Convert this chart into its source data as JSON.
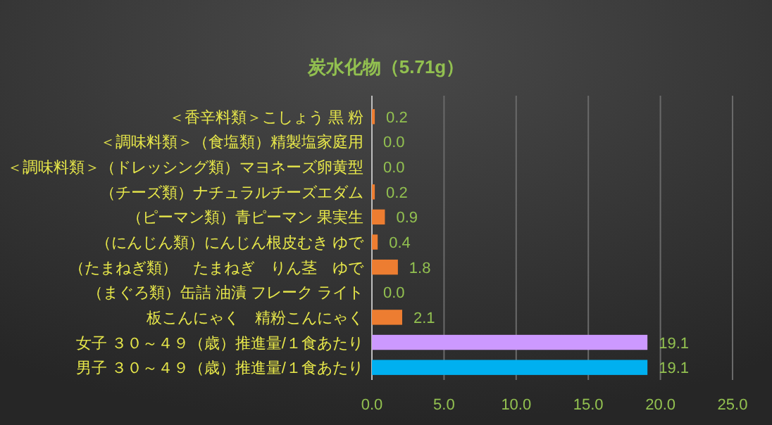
{
  "chart_data": {
    "type": "bar",
    "orientation": "horizontal",
    "title": "炭水化物（5.71g）",
    "categories": [
      "＜香辛料類＞こしょう 黒 粉",
      "＜調味料類＞（食塩類）精製塩家庭用",
      "＜調味料類＞（ドレッシング類）マヨネーズ卵黄型",
      "（チーズ類）ナチュラルチーズエダム",
      "（ピーマン類）青ピーマン 果実生",
      "（にんじん類）にんじん根皮むき ゆで",
      "（たまねぎ類）　たまねぎ　りん茎　ゆで",
      "（まぐろ類）缶詰 油漬 フレーク ライト",
      "板こんにゃく　精粉こんにゃく",
      "女子 ３０～４９（歳）推進量/１食あたり",
      "男子 ３０～４９（歳）推進量/１食あたり"
    ],
    "values": [
      0.2,
      0.0,
      0.0,
      0.2,
      0.9,
      0.4,
      1.8,
      0.0,
      2.1,
      19.1,
      19.1
    ],
    "value_labels": [
      "0.2",
      "0.0",
      "0.0",
      "0.2",
      "0.9",
      "0.4",
      "1.8",
      "0.0",
      "2.1",
      "19.1",
      "19.1"
    ],
    "colors": [
      "#ed7d31",
      "#ed7d31",
      "#ed7d31",
      "#ed7d31",
      "#ed7d31",
      "#ed7d31",
      "#ed7d31",
      "#ed7d31",
      "#ed7d31",
      "#cc99ff",
      "#00b0f0"
    ],
    "xlim": [
      0,
      25
    ],
    "xticks": [
      {
        "value": 0,
        "label": "0.0"
      },
      {
        "value": 5,
        "label": "5.0"
      },
      {
        "value": 10,
        "label": "10.0"
      },
      {
        "value": 15,
        "label": "15.0"
      },
      {
        "value": 20,
        "label": "20.0"
      },
      {
        "value": 25,
        "label": "25.0"
      }
    ],
    "grid": "x"
  }
}
